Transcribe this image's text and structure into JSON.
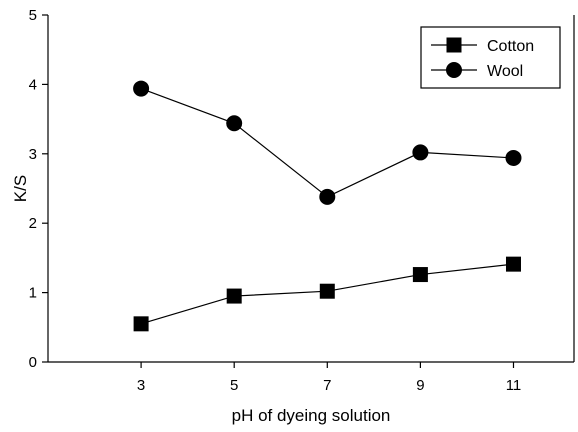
{
  "chart_data": {
    "type": "line",
    "title": "",
    "xlabel": "pH of dyeing solution",
    "ylabel": "K/S",
    "x": [
      3,
      5,
      7,
      9,
      11
    ],
    "xticks": [
      3,
      5,
      7,
      9,
      11
    ],
    "yticks": [
      0,
      1,
      2,
      3,
      4,
      5
    ],
    "xlim": [
      1,
      12.3
    ],
    "ylim": [
      0,
      5
    ],
    "grid": false,
    "legend_position": "top-right",
    "series": [
      {
        "name": "Cotton",
        "marker": "square",
        "values": [
          0.55,
          0.95,
          1.02,
          1.26,
          1.41
        ]
      },
      {
        "name": "Wool",
        "marker": "circle",
        "values": [
          3.94,
          3.44,
          2.38,
          3.02,
          2.94
        ]
      }
    ]
  }
}
